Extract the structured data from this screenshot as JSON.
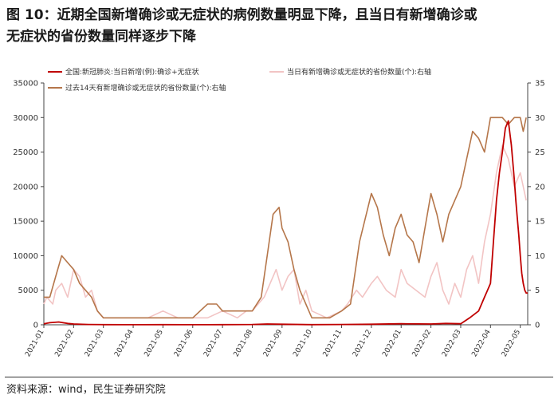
{
  "header": {
    "title_line1": "图 10：近期全国新增确诊或无症状的病例数量明显下降，且当日有新增确诊或",
    "title_line2": "无症状的省份数量同样逐步下降"
  },
  "footer": {
    "source": "资料来源：wind，民生证券研究院"
  },
  "chart_data": {
    "type": "line",
    "title": "",
    "xlabel": "",
    "ylabel": "",
    "x_ticks": [
      "2021-01",
      "2021-02",
      "2021-03",
      "2021-04",
      "2021-05",
      "2021-06",
      "2021-07",
      "2021-08",
      "2021-09",
      "2021-10",
      "2021-11",
      "2021-12",
      "2022-01",
      "2022-02",
      "2022-03",
      "2022-04",
      "2022-05"
    ],
    "x_range": [
      0,
      16.25
    ],
    "ylim_left": [
      0,
      35000
    ],
    "y_ticks_left": [
      0,
      5000,
      10000,
      15000,
      20000,
      25000,
      30000,
      35000
    ],
    "ylim_right": [
      0,
      35
    ],
    "y_ticks_right": [
      0,
      5,
      10,
      15,
      20,
      25,
      30,
      35
    ],
    "grid": false,
    "legend": [
      {
        "label": "全国:新冠肺炎:当日新增(例):确诊+无症状",
        "color": "#c00000",
        "position": "top-left"
      },
      {
        "label": "当日有新增确诊或无症状的省份数量(个):右轴",
        "color": "#f2c4c4",
        "position": "top-right"
      },
      {
        "label": "过去14天有新增确诊或无症状的省份数量(个):右轴",
        "color": "#b5764a",
        "position": "top-left"
      }
    ],
    "series": [
      {
        "name": "全国:新冠肺炎:当日新增(例):确诊+无症状",
        "axis": "left",
        "color": "#c00000",
        "x": [
          0,
          0.2,
          0.5,
          0.8,
          1.0,
          1.5,
          2.0,
          3.0,
          4.0,
          5.0,
          6.0,
          7.0,
          7.5,
          8.0,
          9.0,
          10.0,
          11.0,
          12.0,
          13.0,
          13.5,
          14.0,
          14.3,
          14.6,
          14.8,
          14.9,
          15.0,
          15.1,
          15.2,
          15.3,
          15.4,
          15.5,
          15.6,
          15.7,
          15.8,
          15.85,
          15.9,
          15.95,
          16.0,
          16.05,
          16.1,
          16.15,
          16.2,
          16.25
        ],
        "y": [
          150,
          300,
          400,
          200,
          120,
          50,
          20,
          15,
          20,
          15,
          20,
          50,
          120,
          80,
          20,
          50,
          80,
          150,
          120,
          200,
          150,
          1000,
          2000,
          4000,
          5000,
          6000,
          12000,
          18000,
          22000,
          25000,
          28500,
          29500,
          26000,
          21000,
          18000,
          15500,
          13000,
          10000,
          7500,
          6000,
          5000,
          4600,
          4600
        ]
      },
      {
        "name": "当日有新增确诊或无症状的省份数量(个):右轴",
        "axis": "right",
        "color": "#f2c4c4",
        "x": [
          0,
          0.1,
          0.3,
          0.4,
          0.6,
          0.8,
          1.0,
          1.2,
          1.4,
          1.6,
          1.8,
          2.0,
          2.5,
          3.0,
          3.5,
          4.0,
          4.5,
          5.0,
          5.5,
          6.0,
          6.5,
          6.8,
          7.0,
          7.2,
          7.4,
          7.6,
          7.8,
          8.0,
          8.2,
          8.4,
          8.6,
          8.8,
          9.0,
          9.5,
          10.0,
          10.2,
          10.5,
          10.7,
          11.0,
          11.2,
          11.5,
          11.8,
          12.0,
          12.2,
          12.5,
          12.8,
          13.0,
          13.2,
          13.4,
          13.6,
          13.8,
          14.0,
          14.2,
          14.4,
          14.6,
          14.8,
          15.0,
          15.2,
          15.4,
          15.6,
          15.8,
          16.0,
          16.2
        ],
        "y": [
          3,
          4,
          3,
          5,
          6,
          4,
          8,
          7,
          4,
          5,
          2,
          1,
          1,
          1,
          1,
          2,
          1,
          1,
          1,
          2,
          1,
          2,
          2,
          3,
          4,
          6,
          8,
          5,
          7,
          8,
          3,
          5,
          2,
          1,
          2,
          3,
          5,
          4,
          6,
          7,
          5,
          4,
          8,
          6,
          5,
          4,
          7,
          9,
          5,
          3,
          6,
          4,
          8,
          10,
          6,
          12,
          16,
          22,
          26,
          24,
          20,
          22,
          18
        ]
      },
      {
        "name": "过去14天有新增确诊或无症状的省份数量(个):右轴",
        "axis": "right",
        "color": "#b5764a",
        "x": [
          0,
          0.2,
          0.4,
          0.6,
          0.8,
          1.0,
          1.2,
          1.4,
          1.6,
          1.8,
          2.0,
          2.3,
          2.6,
          3.0,
          3.5,
          4.0,
          4.3,
          4.6,
          5.0,
          5.5,
          5.8,
          6.0,
          6.3,
          6.6,
          7.0,
          7.3,
          7.5,
          7.7,
          7.9,
          8.0,
          8.2,
          8.4,
          8.6,
          8.8,
          9.0,
          9.3,
          9.6,
          10.0,
          10.3,
          10.6,
          11.0,
          11.2,
          11.4,
          11.6,
          11.8,
          12.0,
          12.2,
          12.4,
          12.6,
          12.8,
          13.0,
          13.2,
          13.4,
          13.6,
          13.8,
          14.0,
          14.2,
          14.4,
          14.6,
          14.8,
          15.0,
          15.2,
          15.4,
          15.6,
          15.8,
          16.0,
          16.1,
          16.2
        ],
        "y": [
          4,
          4,
          7,
          10,
          9,
          8,
          6,
          5,
          4,
          2,
          1,
          1,
          1,
          1,
          1,
          1,
          1,
          1,
          1,
          3,
          3,
          2,
          2,
          2,
          2,
          4,
          10,
          16,
          17,
          14,
          12,
          8,
          5,
          3,
          1,
          1,
          1,
          2,
          3,
          12,
          19,
          17,
          13,
          10,
          14,
          16,
          13,
          12,
          9,
          14,
          19,
          16,
          12,
          16,
          18,
          20,
          24,
          28,
          27,
          25,
          30,
          30,
          30,
          29,
          30,
          30,
          28,
          30
        ]
      }
    ]
  }
}
